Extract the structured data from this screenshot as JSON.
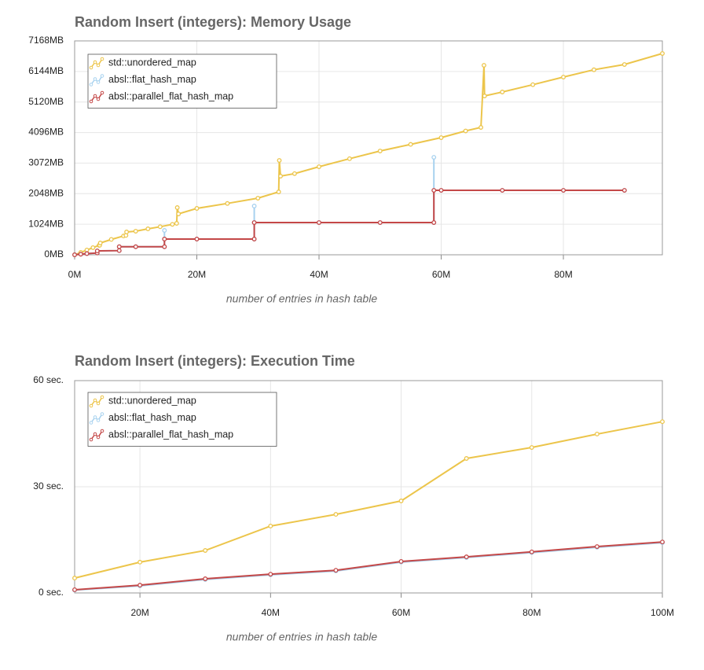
{
  "chart_data": [
    {
      "type": "line",
      "title": "Random Insert (integers): Memory Usage",
      "x_label": "number of entries in hash table",
      "xlim": [
        0,
        96.2
      ],
      "xticks": [
        {
          "value": 0,
          "label": "0M"
        },
        {
          "value": 20,
          "label": "20M"
        },
        {
          "value": 40,
          "label": "40M"
        },
        {
          "value": 60,
          "label": "60M"
        },
        {
          "value": 80,
          "label": "80M"
        }
      ],
      "ylim": [
        0,
        7168
      ],
      "yticks": [
        {
          "value": 0,
          "label": "0MB"
        },
        {
          "value": 1024,
          "label": "1024MB"
        },
        {
          "value": 2048,
          "label": "2048MB"
        },
        {
          "value": 3072,
          "label": "3072MB"
        },
        {
          "value": 4096,
          "label": "4096MB"
        },
        {
          "value": 5120,
          "label": "5120MB"
        },
        {
          "value": 6144,
          "label": "6144MB"
        },
        {
          "value": 7168,
          "label": "7168MB"
        }
      ],
      "grid": true,
      "legend": "top-left",
      "series": [
        {
          "name": "std::unordered_map",
          "color": "#ecc54b",
          "x": [
            0,
            1,
            2,
            3,
            4,
            4.1,
            4.2,
            6,
            8,
            8.4,
            8.5,
            10,
            12,
            14,
            16,
            16.7,
            16.8,
            17,
            20,
            25,
            30,
            33.4,
            33.5,
            33.7,
            36,
            40,
            45,
            50,
            55,
            60,
            64,
            66.5,
            67,
            67.1,
            70,
            75,
            80,
            85,
            90,
            96.2
          ],
          "values": [
            0,
            80,
            160,
            240,
            316,
            320,
            395,
            515,
            630,
            650,
            764,
            790,
            870,
            940,
            1020,
            1054,
            1581,
            1370,
            1555,
            1720,
            1897,
            2108,
            3162,
            2635,
            2720,
            2951,
            3220,
            3478,
            3700,
            3926,
            4150,
            4269,
            6350,
            5323,
            5455,
            5700,
            5955,
            6200,
            6377,
            6746
          ]
        },
        {
          "name": "absl::flat_hash_map",
          "color": "#a8d2ef",
          "x": [
            0,
            1,
            2,
            3.7,
            3.7,
            7.3,
            7.3,
            10,
            14.7,
            14.7,
            14.7,
            20,
            29.4,
            29.4,
            29.4,
            40,
            50,
            58.8,
            58.8,
            58.8,
            60,
            70,
            80,
            90
          ],
          "values": [
            0,
            20,
            40,
            60,
            130,
            140,
            270,
            270,
            270,
            817,
            527,
            527,
            527,
            1634,
            1080,
            1080,
            1080,
            1080,
            3267,
            2160,
            2160,
            2160,
            2160,
            2160
          ]
        },
        {
          "name": "absl::parallel_flat_hash_map",
          "color": "#c44848",
          "x": [
            0,
            1,
            2,
            3.7,
            3.7,
            7.3,
            7.3,
            10,
            14.7,
            14.7,
            20,
            29.4,
            29.4,
            40,
            50,
            58.8,
            58.8,
            60,
            70,
            80,
            90
          ],
          "values": [
            0,
            20,
            40,
            60,
            130,
            140,
            270,
            270,
            270,
            527,
            527,
            527,
            1080,
            1080,
            1080,
            1080,
            2160,
            2160,
            2160,
            2160,
            2160
          ]
        }
      ]
    },
    {
      "type": "line",
      "title": "Random Insert (integers): Execution Time",
      "x_label": "number of entries in hash table",
      "xlim": [
        10,
        100
      ],
      "xticks": [
        {
          "value": 20,
          "label": "20M"
        },
        {
          "value": 40,
          "label": "40M"
        },
        {
          "value": 60,
          "label": "60M"
        },
        {
          "value": 80,
          "label": "80M"
        },
        {
          "value": 100,
          "label": "100M"
        }
      ],
      "ylim": [
        0,
        60
      ],
      "yticks": [
        {
          "value": 0,
          "label": "0 sec."
        },
        {
          "value": 30,
          "label": "30 sec."
        },
        {
          "value": 60,
          "label": "60 sec."
        }
      ],
      "grid": true,
      "legend": "top-left",
      "series": [
        {
          "name": "std::unordered_map",
          "color": "#ecc54b",
          "x": [
            10,
            20,
            30,
            40,
            50,
            60,
            70,
            80,
            90,
            100
          ],
          "values": [
            4.2,
            8.7,
            12,
            18.9,
            22.2,
            26,
            38,
            41.1,
            44.9,
            48.4
          ]
        },
        {
          "name": "absl::flat_hash_map",
          "color": "#a8d2ef",
          "x": [
            10,
            20,
            30,
            40,
            50,
            60,
            70,
            80,
            90,
            100
          ],
          "values": [
            0.8,
            2.0,
            3.8,
            5.1,
            6.2,
            8.7,
            10.0,
            11.4,
            12.9,
            14.2
          ]
        },
        {
          "name": "absl::parallel_flat_hash_map",
          "color": "#c44848",
          "x": [
            10,
            20,
            30,
            40,
            50,
            60,
            70,
            80,
            90,
            100
          ],
          "values": [
            0.9,
            2.2,
            4,
            5.3,
            6.4,
            8.9,
            10.2,
            11.6,
            13.1,
            14.4
          ]
        }
      ]
    }
  ]
}
